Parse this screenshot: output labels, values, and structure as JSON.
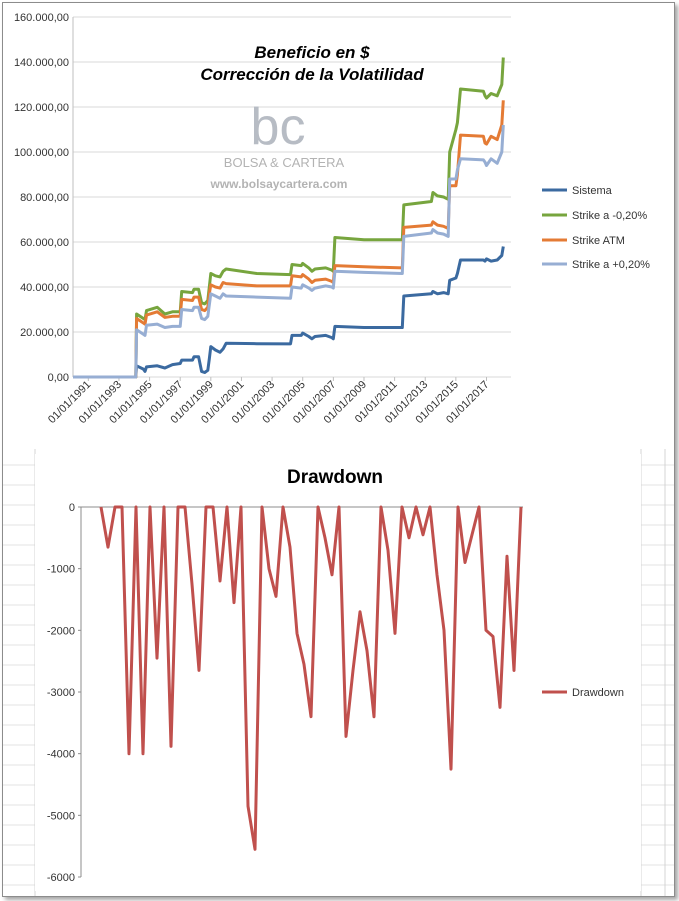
{
  "watermark": {
    "logo_letters": "bc",
    "brand": "BOLSA & CARTERA",
    "url": "www.bolsaycartera.com",
    "logo_color": "#b7bcc4"
  },
  "chart_data": [
    {
      "type": "line",
      "title": "Beneficio en $",
      "subtitle": "Corrección de la Volatilidad",
      "x_tick_labels": [
        "01/01/1991",
        "01/01/1993",
        "01/01/1995",
        "01/01/1997",
        "01/01/1999",
        "01/01/2001",
        "01/01/2003",
        "01/01/2005",
        "01/01/2007",
        "01/01/2009",
        "01/01/2011",
        "01/01/2013",
        "01/01/2015",
        "01/01/2017"
      ],
      "y_tick_labels": [
        "0,00",
        "20.000,00",
        "40.000,00",
        "60.000,00",
        "80.000,00",
        "100.000,00",
        "120.000,00",
        "140.000,00",
        "160.000,00"
      ],
      "ylim": [
        0,
        160000
      ],
      "xlim": [
        1990,
        2018.6
      ],
      "grid": "horizontal",
      "legend_position": "right",
      "series": [
        {
          "name": "Sistema",
          "color": "#3b6aa0",
          "points": [
            [
              1990,
              0
            ],
            [
              1993.3,
              0
            ],
            [
              1994.1,
              0
            ],
            [
              1994.15,
              5000
            ],
            [
              1994.6,
              3500
            ],
            [
              1994.7,
              2500
            ],
            [
              1994.8,
              4500
            ],
            [
              1995.5,
              5000
            ],
            [
              1996,
              4000
            ],
            [
              1996.5,
              5500
            ],
            [
              1997.0,
              6000
            ],
            [
              1997.1,
              7500
            ],
            [
              1997.8,
              7500
            ],
            [
              1997.9,
              9000
            ],
            [
              1998.2,
              9000
            ],
            [
              1998.4,
              2500
            ],
            [
              1998.6,
              2000
            ],
            [
              1998.8,
              3000
            ],
            [
              1998.9,
              8000
            ],
            [
              1999.0,
              13500
            ],
            [
              1999.3,
              12000
            ],
            [
              1999.6,
              11000
            ],
            [
              1999.8,
              12500
            ],
            [
              2000.0,
              15000
            ],
            [
              2002.0,
              14800
            ],
            [
              2004.2,
              14700
            ],
            [
              2004.3,
              18500
            ],
            [
              2004.9,
              18500
            ],
            [
              2005.0,
              19500
            ],
            [
              2005.4,
              18000
            ],
            [
              2005.6,
              17000
            ],
            [
              2005.8,
              18000
            ],
            [
              2006.5,
              18500
            ],
            [
              2006.9,
              17500
            ],
            [
              2007.0,
              17000
            ],
            [
              2007.1,
              22500
            ],
            [
              2009.0,
              22000
            ],
            [
              2011.5,
              22000
            ],
            [
              2011.6,
              36000
            ],
            [
              2013.4,
              37000
            ],
            [
              2013.5,
              38000
            ],
            [
              2013.8,
              37000
            ],
            [
              2014.2,
              37500
            ],
            [
              2014.5,
              37000
            ],
            [
              2014.6,
              43000
            ],
            [
              2015.0,
              44000
            ],
            [
              2015.1,
              46000
            ],
            [
              2015.3,
              52000
            ],
            [
              2016.8,
              52000
            ],
            [
              2016.9,
              51500
            ],
            [
              2017.0,
              52500
            ],
            [
              2017.3,
              51500
            ],
            [
              2017.7,
              52000
            ],
            [
              2018.0,
              54000
            ],
            [
              2018.1,
              58000
            ]
          ]
        },
        {
          "name": "Strike a -0,20%",
          "color": "#77a53e",
          "points": [
            [
              1990,
              0
            ],
            [
              1993.3,
              0
            ],
            [
              1994.1,
              0
            ],
            [
              1994.15,
              28000
            ],
            [
              1994.6,
              26000
            ],
            [
              1994.7,
              25500
            ],
            [
              1994.8,
              29500
            ],
            [
              1995.5,
              31000
            ],
            [
              1996,
              28000
            ],
            [
              1996.5,
              29000
            ],
            [
              1997.0,
              29000
            ],
            [
              1997.1,
              38000
            ],
            [
              1997.8,
              37500
            ],
            [
              1997.9,
              39000
            ],
            [
              1998.2,
              39000
            ],
            [
              1998.4,
              33000
            ],
            [
              1998.6,
              32500
            ],
            [
              1998.8,
              34000
            ],
            [
              1998.9,
              40000
            ],
            [
              1999.0,
              46000
            ],
            [
              1999.3,
              45000
            ],
            [
              1999.6,
              44500
            ],
            [
              1999.8,
              47000
            ],
            [
              2000.0,
              48000
            ],
            [
              2002.0,
              46000
            ],
            [
              2004.2,
              45500
            ],
            [
              2004.3,
              50000
            ],
            [
              2004.9,
              49500
            ],
            [
              2005.0,
              50500
            ],
            [
              2005.4,
              48500
            ],
            [
              2005.6,
              47000
            ],
            [
              2005.8,
              48000
            ],
            [
              2006.5,
              48500
            ],
            [
              2006.9,
              47500
            ],
            [
              2007.0,
              47000
            ],
            [
              2007.1,
              62000
            ],
            [
              2009.0,
              61000
            ],
            [
              2011.5,
              61000
            ],
            [
              2011.6,
              76500
            ],
            [
              2013.4,
              78000
            ],
            [
              2013.5,
              82000
            ],
            [
              2013.8,
              80500
            ],
            [
              2014.2,
              80000
            ],
            [
              2014.5,
              79000
            ],
            [
              2014.6,
              100000
            ],
            [
              2015.0,
              110000
            ],
            [
              2015.1,
              113000
            ],
            [
              2015.3,
              128000
            ],
            [
              2016.8,
              127000
            ],
            [
              2016.9,
              125000
            ],
            [
              2017.0,
              124000
            ],
            [
              2017.3,
              126000
            ],
            [
              2017.7,
              125000
            ],
            [
              2018.0,
              130000
            ],
            [
              2018.1,
              142000
            ]
          ]
        },
        {
          "name": "Strike ATM",
          "color": "#e47b35",
          "points": [
            [
              1990,
              0
            ],
            [
              1993.3,
              0
            ],
            [
              1994.1,
              0
            ],
            [
              1994.15,
              26000
            ],
            [
              1994.6,
              24000
            ],
            [
              1994.7,
              23500
            ],
            [
              1994.8,
              27500
            ],
            [
              1995.5,
              29000
            ],
            [
              1996,
              26500
            ],
            [
              1996.5,
              27000
            ],
            [
              1997.0,
              27000
            ],
            [
              1997.1,
              34500
            ],
            [
              1997.8,
              34000
            ],
            [
              1997.9,
              35500
            ],
            [
              1998.2,
              35500
            ],
            [
              1998.4,
              30000
            ],
            [
              1998.6,
              29500
            ],
            [
              1998.8,
              31000
            ],
            [
              1998.9,
              37000
            ],
            [
              1999.0,
              41000
            ],
            [
              1999.3,
              40000
            ],
            [
              1999.6,
              39500
            ],
            [
              1999.8,
              42000
            ],
            [
              2000.0,
              41500
            ],
            [
              2002.0,
              40500
            ],
            [
              2004.2,
              40500
            ],
            [
              2004.3,
              45000
            ],
            [
              2004.9,
              44500
            ],
            [
              2005.0,
              45500
            ],
            [
              2005.4,
              43500
            ],
            [
              2005.6,
              42000
            ],
            [
              2005.8,
              43000
            ],
            [
              2006.5,
              43500
            ],
            [
              2006.9,
              42500
            ],
            [
              2007.0,
              42000
            ],
            [
              2007.1,
              49500
            ],
            [
              2009.0,
              49000
            ],
            [
              2011.5,
              48500
            ],
            [
              2011.6,
              66500
            ],
            [
              2013.4,
              67500
            ],
            [
              2013.5,
              69000
            ],
            [
              2013.8,
              67500
            ],
            [
              2014.2,
              67000
            ],
            [
              2014.5,
              66000
            ],
            [
              2014.6,
              85000
            ],
            [
              2015.0,
              85000
            ],
            [
              2015.1,
              90000
            ],
            [
              2015.3,
              107500
            ],
            [
              2016.8,
              107000
            ],
            [
              2016.9,
              104000
            ],
            [
              2017.0,
              103500
            ],
            [
              2017.3,
              107000
            ],
            [
              2017.7,
              105500
            ],
            [
              2018.0,
              112000
            ],
            [
              2018.1,
              123000
            ]
          ]
        },
        {
          "name": "Strike a +0,20%",
          "color": "#97aed3",
          "points": [
            [
              1990,
              0
            ],
            [
              1993.3,
              0
            ],
            [
              1994.1,
              0
            ],
            [
              1994.15,
              21000
            ],
            [
              1994.6,
              19000
            ],
            [
              1994.7,
              18500
            ],
            [
              1994.8,
              23000
            ],
            [
              1995.5,
              23500
            ],
            [
              1996,
              22000
            ],
            [
              1996.5,
              22500
            ],
            [
              1997.0,
              22500
            ],
            [
              1997.1,
              30000
            ],
            [
              1997.8,
              29500
            ],
            [
              1997.9,
              31000
            ],
            [
              1998.2,
              31000
            ],
            [
              1998.4,
              26000
            ],
            [
              1998.6,
              25500
            ],
            [
              1998.8,
              27000
            ],
            [
              1998.9,
              32000
            ],
            [
              1999.0,
              37000
            ],
            [
              1999.3,
              36000
            ],
            [
              1999.6,
              35000
            ],
            [
              1999.8,
              37000
            ],
            [
              2000.0,
              36000
            ],
            [
              2002.0,
              35500
            ],
            [
              2004.2,
              35000
            ],
            [
              2004.3,
              40000
            ],
            [
              2004.9,
              39500
            ],
            [
              2005.0,
              41000
            ],
            [
              2005.4,
              39500
            ],
            [
              2005.6,
              38500
            ],
            [
              2005.8,
              39500
            ],
            [
              2006.5,
              40500
            ],
            [
              2006.9,
              40000
            ],
            [
              2007.0,
              39500
            ],
            [
              2007.1,
              47000
            ],
            [
              2009.0,
              46500
            ],
            [
              2011.5,
              46000
            ],
            [
              2011.6,
              62500
            ],
            [
              2013.4,
              64000
            ],
            [
              2013.5,
              65500
            ],
            [
              2013.8,
              64000
            ],
            [
              2014.2,
              63500
            ],
            [
              2014.5,
              62500
            ],
            [
              2014.6,
              88000
            ],
            [
              2015.0,
              88000
            ],
            [
              2015.1,
              92000
            ],
            [
              2015.3,
              97000
            ],
            [
              2016.8,
              96500
            ],
            [
              2016.9,
              95500
            ],
            [
              2017.0,
              94000
            ],
            [
              2017.3,
              97000
            ],
            [
              2017.7,
              95000
            ],
            [
              2018.0,
              100000
            ],
            [
              2018.1,
              112000
            ]
          ]
        }
      ]
    },
    {
      "type": "line",
      "title": "Drawdown",
      "y_tick_labels": [
        "0",
        "-1000",
        "-2000",
        "-3000",
        "-4000",
        "-5000",
        "-6000"
      ],
      "ylim": [
        -6000,
        0
      ],
      "grid": "none",
      "legend_position": "right",
      "series": [
        {
          "name": "Drawdown",
          "color": "#c0504d",
          "values": [
            0,
            -650,
            0,
            0,
            -4000,
            0,
            -4000,
            0,
            -2450,
            0,
            -3880,
            0,
            0,
            -1250,
            -2650,
            0,
            0,
            -1200,
            0,
            -1550,
            0,
            -4850,
            -5550,
            0,
            -1000,
            -1450,
            0,
            -650,
            -2050,
            -2550,
            -3400,
            0,
            -500,
            -1100,
            0,
            -3720,
            -2650,
            -1700,
            -2330,
            -3400,
            0,
            -700,
            -2050,
            0,
            -500,
            0,
            -450,
            0,
            -1100,
            -2000,
            -4250,
            0,
            -900,
            -450,
            0,
            -2000,
            -2100,
            -3250,
            -800,
            -2650,
            0
          ]
        }
      ]
    }
  ]
}
